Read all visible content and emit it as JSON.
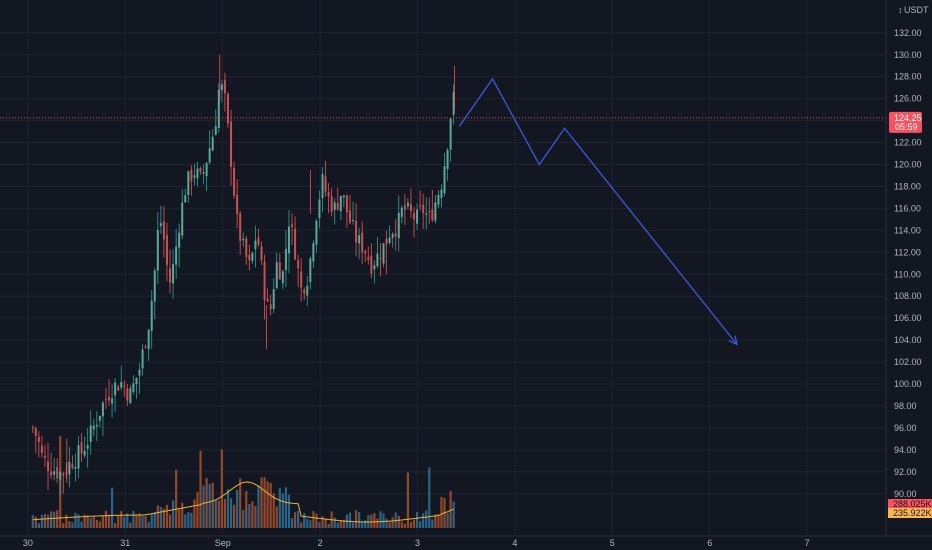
{
  "chart_data": {
    "type": "candlestick",
    "currency_label": "USDT",
    "y_ticks": [
      132,
      130,
      128,
      126,
      124,
      122,
      120,
      118,
      116,
      114,
      112,
      110,
      108,
      106,
      104,
      102,
      100,
      98,
      96,
      94,
      92,
      90
    ],
    "x_ticks": [
      "30",
      "31",
      "Sep",
      "2",
      "3",
      "4",
      "5",
      "6",
      "7"
    ],
    "price_range": [
      89.2,
      133.6
    ],
    "last_price": {
      "value": "124.25",
      "countdown": "05:59",
      "level": 124.25
    },
    "volume_labels": [
      {
        "text": "288.025K",
        "color": "#f7525f"
      },
      {
        "text": "235.922K",
        "color": "#ffb74d"
      }
    ],
    "price_path": [
      [
        29.55,
        96.0
      ],
      [
        29.6,
        95.0
      ],
      [
        29.65,
        93.2
      ],
      [
        29.75,
        92.3
      ],
      [
        29.85,
        91.8
      ],
      [
        29.95,
        93.0
      ],
      [
        30.05,
        93.8
      ],
      [
        30.15,
        95.5
      ],
      [
        30.25,
        97.8
      ],
      [
        30.35,
        99.5
      ],
      [
        30.45,
        100.2
      ],
      [
        30.55,
        99.0
      ],
      [
        30.65,
        101.5
      ],
      [
        30.75,
        106.0
      ],
      [
        30.8,
        110.0
      ],
      [
        30.85,
        115.5
      ],
      [
        30.9,
        113.0
      ],
      [
        30.95,
        109.0
      ],
      [
        31.0,
        111.0
      ],
      [
        31.05,
        114.5
      ],
      [
        31.12,
        118.0
      ],
      [
        31.2,
        119.5
      ],
      [
        31.28,
        118.5
      ],
      [
        31.35,
        121.0
      ],
      [
        31.42,
        123.5
      ],
      [
        31.47,
        127.5
      ],
      [
        31.52,
        126.0
      ],
      [
        31.58,
        121.0
      ],
      [
        31.65,
        114.5
      ],
      [
        31.72,
        112.0
      ],
      [
        31.78,
        110.5
      ],
      [
        31.85,
        114.0
      ],
      [
        31.92,
        109.0
      ],
      [
        31.98,
        106.0
      ],
      [
        32.05,
        111.0
      ],
      [
        32.12,
        110.0
      ],
      [
        32.18,
        115.0
      ],
      [
        32.25,
        112.0
      ],
      [
        32.3,
        108.5
      ],
      [
        32.38,
        110.0
      ],
      [
        32.45,
        115.0
      ],
      [
        32.52,
        118.5
      ],
      [
        32.58,
        117.0
      ],
      [
        32.65,
        116.0
      ],
      [
        32.72,
        117.5
      ],
      [
        32.8,
        115.0
      ],
      [
        32.88,
        113.0
      ],
      [
        32.95,
        112.5
      ],
      [
        33.02,
        111.0
      ],
      [
        33.08,
        111.5
      ],
      [
        33.15,
        112.5
      ],
      [
        33.22,
        114.0
      ],
      [
        33.3,
        114.5
      ],
      [
        33.35,
        116.0
      ],
      [
        33.42,
        115.5
      ],
      [
        33.5,
        115.0
      ],
      [
        33.55,
        116.0
      ],
      [
        33.62,
        115.0
      ],
      [
        33.68,
        116.5
      ],
      [
        33.75,
        118.5
      ],
      [
        33.8,
        121.5
      ],
      [
        33.84,
        124.5
      ],
      [
        33.87,
        126.0
      ],
      [
        33.9,
        124.25
      ]
    ],
    "high_marks": [
      [
        31.47,
        130.0
      ],
      [
        33.88,
        129.0
      ],
      [
        32.4,
        119.5
      ]
    ],
    "low_marks": [
      [
        29.9,
        91.0
      ],
      [
        31.95,
        103.2
      ],
      [
        33.18,
        110.0
      ]
    ],
    "projection": {
      "color": "#3a5cd8",
      "points": [
        [
          33.93,
          123.5
        ],
        [
          34.27,
          127.8
        ],
        [
          34.75,
          120.0
        ],
        [
          35.01,
          123.3
        ],
        [
          36.78,
          103.6
        ]
      ]
    },
    "volume_ma_color": "#f0b232"
  }
}
